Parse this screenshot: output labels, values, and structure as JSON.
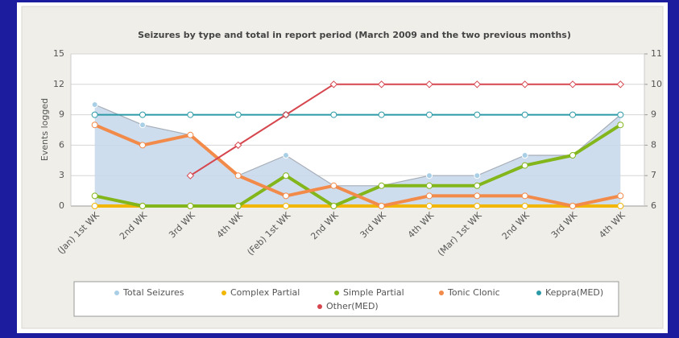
{
  "chart_data": {
    "type": "line",
    "title": "Seizures by type and total in report period (March 2009 and the two previous months)",
    "y_label": "Events logged",
    "categories": [
      "(Jan) 1st WK",
      "2nd WK",
      "3rd WK",
      "4th WK",
      "(Feb) 1st WK",
      "2nd WK",
      "3rd WK",
      "4th WK",
      "(Mar) 1st WK",
      "2nd WK",
      "3rd WK",
      "4th WK"
    ],
    "ylim": [
      0,
      15
    ],
    "yticks": [
      0,
      3,
      6,
      9,
      12,
      15
    ],
    "y2lim": [
      6,
      11
    ],
    "y2ticks": [
      6,
      7,
      8,
      9,
      10,
      11
    ],
    "grid": true,
    "legend": "bottom",
    "series": [
      {
        "name": "Total Seizures",
        "color": "#a9cfe6",
        "kind": "area",
        "values": [
          10,
          8,
          7,
          3,
          5,
          2,
          2,
          3,
          3,
          5,
          5,
          9
        ]
      },
      {
        "name": "Complex Partial",
        "color": "#f2b705",
        "values": [
          0,
          0,
          0,
          0,
          0,
          0,
          0,
          0,
          0,
          0,
          0,
          0
        ]
      },
      {
        "name": "Simple Partial",
        "color": "#82b61a",
        "values": [
          1,
          0,
          0,
          0,
          3,
          0,
          2,
          2,
          2,
          4,
          5,
          8
        ]
      },
      {
        "name": "Tonic Clonic",
        "color": "#f28a4a",
        "values": [
          8,
          6,
          7,
          3,
          1,
          2,
          0,
          1,
          1,
          1,
          0,
          1
        ]
      },
      {
        "name": "Keppra(MED)",
        "color": "#2b9aa6",
        "axis": "y2",
        "values": [
          9,
          9,
          9,
          9,
          9,
          9,
          9,
          9,
          9,
          9,
          9,
          9
        ]
      },
      {
        "name": "Other(MED)",
        "color": "#d6464e",
        "axis": "y2",
        "marker": "diamond",
        "values": [
          null,
          null,
          7,
          8,
          9,
          10,
          10,
          10,
          10,
          10,
          10,
          10
        ]
      }
    ]
  }
}
